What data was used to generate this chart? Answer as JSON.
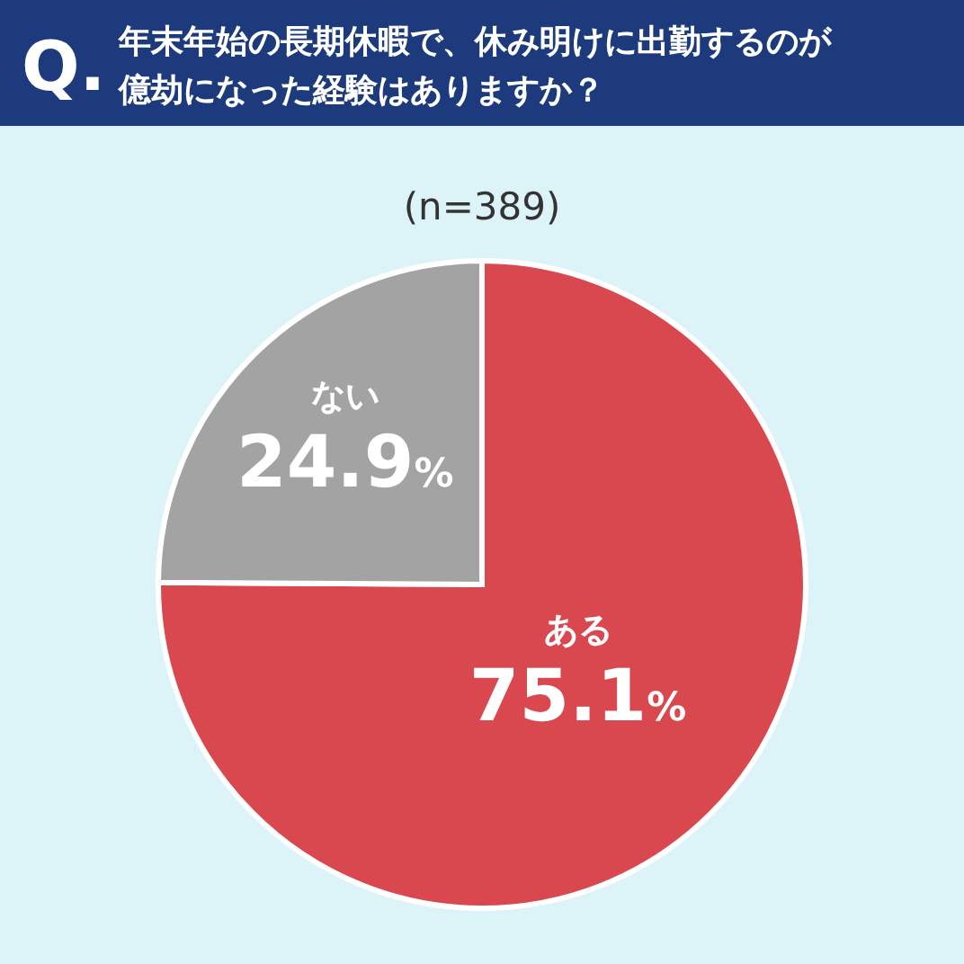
{
  "chart_data": {
    "type": "pie",
    "title": "年末年始の長期休暇で、休み明けに出勤するのが億劫になった経験はありますか？",
    "subtitle": "(n=389)",
    "annotations": [
      "Q."
    ],
    "categories": [
      "ある",
      "ない"
    ],
    "values": [
      75.1,
      24.9
    ],
    "colors": [
      "#d9474f",
      "#a3a3a3"
    ],
    "value_labels": [
      "75.1%",
      "24.9%"
    ]
  }
}
